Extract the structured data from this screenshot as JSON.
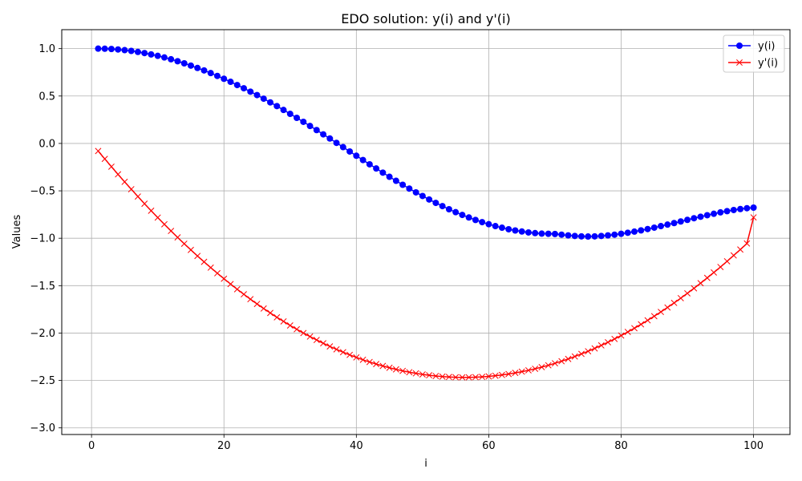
{
  "chart_data": {
    "type": "line",
    "title": "EDO solution: y(i) and y'(i)",
    "xlabel": "i",
    "ylabel": "Values",
    "xlim": [
      -4.5,
      105.5
    ],
    "ylim": [
      -3.07,
      1.2
    ],
    "xticks": [
      0,
      20,
      40,
      60,
      80,
      100
    ],
    "yticks": [
      1.0,
      0.5,
      0.0,
      -0.5,
      -1.0,
      -1.5,
      -2.0,
      -2.5,
      -3.0
    ],
    "xtick_labels": [
      "0",
      "20",
      "40",
      "60",
      "80",
      "100"
    ],
    "ytick_labels": [
      "1.0",
      "0.5",
      "0.0",
      "−0.5",
      "−1.0",
      "−1.5",
      "−2.0",
      "−2.5",
      "−3.0"
    ],
    "grid": true,
    "legend_position": "top-right",
    "x": [
      1,
      2,
      3,
      4,
      5,
      6,
      7,
      8,
      9,
      10,
      11,
      12,
      13,
      14,
      15,
      16,
      17,
      18,
      19,
      20,
      21,
      22,
      23,
      24,
      25,
      26,
      27,
      28,
      29,
      30,
      31,
      32,
      33,
      34,
      35,
      36,
      37,
      38,
      39,
      40,
      41,
      42,
      43,
      44,
      45,
      46,
      47,
      48,
      49,
      50,
      51,
      52,
      53,
      54,
      55,
      56,
      57,
      58,
      59,
      60,
      61,
      62,
      63,
      64,
      65,
      66,
      67,
      68,
      69,
      70,
      71,
      72,
      73,
      74,
      75,
      76,
      77,
      78,
      79,
      80,
      81,
      82,
      83,
      84,
      85,
      86,
      87,
      88,
      89,
      90,
      91,
      92,
      93,
      94,
      95,
      96,
      97,
      98,
      99,
      100
    ],
    "series": [
      {
        "name": "y(i)",
        "color": "#0000ff",
        "marker": "circle",
        "values": [
          1.0,
          0.999,
          0.996,
          0.991,
          0.984,
          0.976,
          0.965,
          0.953,
          0.939,
          0.924,
          0.907,
          0.888,
          0.867,
          0.845,
          0.821,
          0.796,
          0.77,
          0.742,
          0.712,
          0.682,
          0.65,
          0.616,
          0.582,
          0.546,
          0.51,
          0.472,
          0.433,
          0.394,
          0.353,
          0.312,
          0.27,
          0.228,
          0.184,
          0.141,
          0.096,
          0.052,
          0.006,
          -0.039,
          -0.085,
          -0.13,
          -0.175,
          -0.22,
          -0.264,
          -0.308,
          -0.352,
          -0.394,
          -0.436,
          -0.476,
          -0.516,
          -0.554,
          -0.591,
          -0.627,
          -0.661,
          -0.694,
          -0.725,
          -0.754,
          -0.781,
          -0.807,
          -0.83,
          -0.852,
          -0.872,
          -0.889,
          -0.905,
          -0.918,
          -0.929,
          -0.939,
          -0.946,
          -0.951,
          -0.953,
          -0.955,
          -0.962,
          -0.97,
          -0.976,
          -0.98,
          -0.982,
          -0.98,
          -0.976,
          -0.97,
          -0.962,
          -0.953,
          -0.942,
          -0.93,
          -0.917,
          -0.903,
          -0.888,
          -0.872,
          -0.856,
          -0.84,
          -0.823,
          -0.806,
          -0.789,
          -0.773,
          -0.757,
          -0.742,
          -0.727,
          -0.714,
          -0.702,
          -0.692,
          -0.683,
          -0.677
        ]
      },
      {
        "name": "y'(i)",
        "color": "#ff0000",
        "marker": "x",
        "values": [
          -0.08,
          -0.163,
          -0.245,
          -0.326,
          -0.405,
          -0.483,
          -0.56,
          -0.636,
          -0.71,
          -0.782,
          -0.853,
          -0.923,
          -0.991,
          -1.058,
          -1.123,
          -1.187,
          -1.249,
          -1.31,
          -1.369,
          -1.427,
          -1.483,
          -1.538,
          -1.591,
          -1.643,
          -1.693,
          -1.741,
          -1.788,
          -1.834,
          -1.877,
          -1.92,
          -1.96,
          -2.0,
          -2.037,
          -2.073,
          -2.108,
          -2.141,
          -2.172,
          -2.202,
          -2.23,
          -2.257,
          -2.282,
          -2.305,
          -2.327,
          -2.347,
          -2.366,
          -2.383,
          -2.399,
          -2.413,
          -2.425,
          -2.436,
          -2.445,
          -2.453,
          -2.459,
          -2.463,
          -2.466,
          -2.467,
          -2.467,
          -2.465,
          -2.462,
          -2.457,
          -2.45,
          -2.442,
          -2.432,
          -2.42,
          -2.407,
          -2.393,
          -2.377,
          -2.359,
          -2.34,
          -2.319,
          -2.297,
          -2.273,
          -2.247,
          -2.22,
          -2.192,
          -2.162,
          -2.13,
          -2.097,
          -2.062,
          -2.026,
          -1.988,
          -1.949,
          -1.908,
          -1.866,
          -1.822,
          -1.777,
          -1.73,
          -1.682,
          -1.632,
          -1.581,
          -1.528,
          -1.474,
          -1.418,
          -1.361,
          -1.303,
          -1.243,
          -1.181,
          -1.119,
          -1.055,
          -0.78
        ]
      }
    ]
  }
}
